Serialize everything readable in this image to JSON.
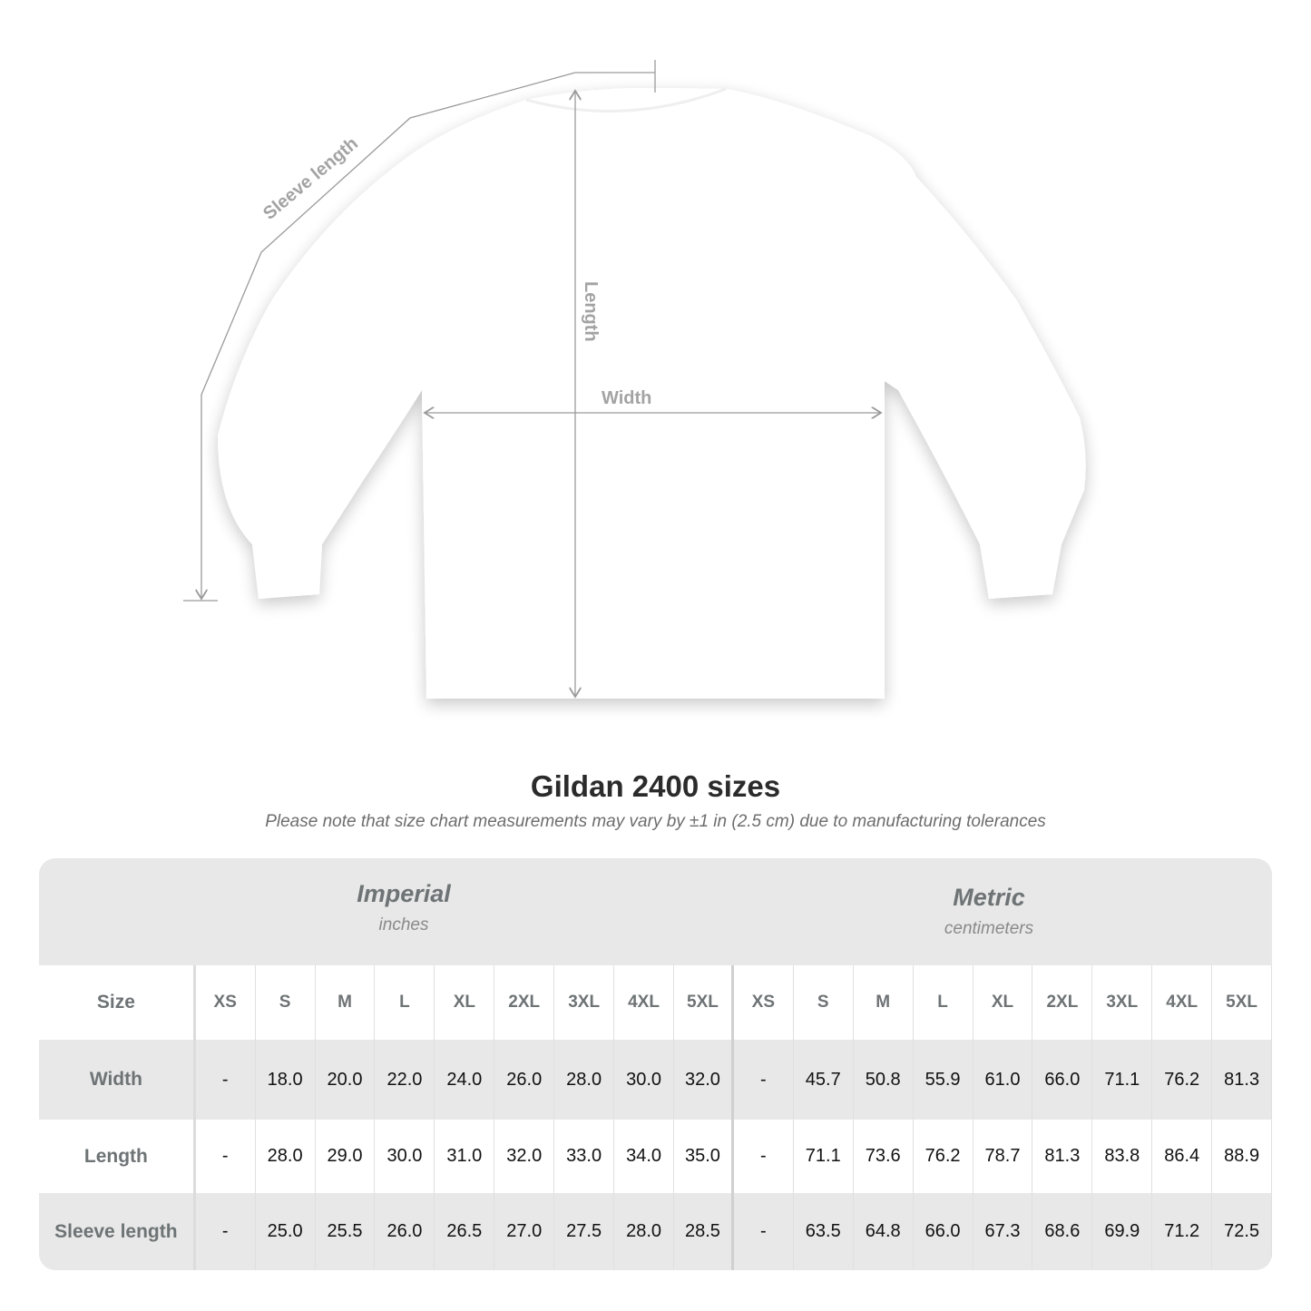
{
  "illustration": {
    "labels": {
      "sleeve": "Sleeve length",
      "length": "Length",
      "width": "Width"
    },
    "colors": {
      "dimension_line": "#9a9a9a",
      "shirt": "#ffffff"
    }
  },
  "title": "Gildan 2400 sizes",
  "note": "Please note that size chart measurements may vary by ±1 in (2.5 cm) due to manufacturing tolerances",
  "table": {
    "imperial": {
      "title": "Imperial",
      "unit": "inches"
    },
    "metric": {
      "title": "Metric",
      "unit": "centimeters"
    },
    "size_label": "Size",
    "sizes": [
      "XS",
      "S",
      "M",
      "L",
      "XL",
      "2XL",
      "3XL",
      "4XL",
      "5XL"
    ],
    "rows": [
      {
        "label": "Width",
        "imperial": [
          "-",
          "18.0",
          "20.0",
          "22.0",
          "24.0",
          "26.0",
          "28.0",
          "30.0",
          "32.0"
        ],
        "metric": [
          "-",
          "45.7",
          "50.8",
          "55.9",
          "61.0",
          "66.0",
          "71.1",
          "76.2",
          "81.3"
        ]
      },
      {
        "label": "Length",
        "imperial": [
          "-",
          "28.0",
          "29.0",
          "30.0",
          "31.0",
          "32.0",
          "33.0",
          "34.0",
          "35.0"
        ],
        "metric": [
          "-",
          "71.1",
          "73.6",
          "76.2",
          "78.7",
          "81.3",
          "83.8",
          "86.4",
          "88.9"
        ]
      },
      {
        "label": "Sleeve length",
        "imperial": [
          "-",
          "25.0",
          "25.5",
          "26.0",
          "26.5",
          "27.0",
          "27.5",
          "28.0",
          "28.5"
        ],
        "metric": [
          "-",
          "63.5",
          "64.8",
          "66.0",
          "67.3",
          "68.6",
          "69.9",
          "71.2",
          "72.5"
        ]
      }
    ]
  }
}
